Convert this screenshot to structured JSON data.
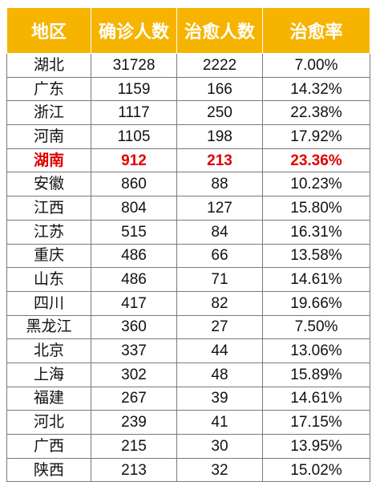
{
  "table": {
    "headers": [
      "地区",
      "确诊人数",
      "治愈人数",
      "治愈率"
    ],
    "highlight_color": "#e00000",
    "header_color": "#f6b400",
    "rows": [
      {
        "region": "湖北",
        "confirmed": "31728",
        "cured": "2222",
        "rate": "7.00%",
        "highlight": false
      },
      {
        "region": "广东",
        "confirmed": "1159",
        "cured": "166",
        "rate": "14.32%",
        "highlight": false
      },
      {
        "region": "浙江",
        "confirmed": "1117",
        "cured": "250",
        "rate": "22.38%",
        "highlight": false
      },
      {
        "region": "河南",
        "confirmed": "1105",
        "cured": "198",
        "rate": "17.92%",
        "highlight": false
      },
      {
        "region": "湖南",
        "confirmed": "912",
        "cured": "213",
        "rate": "23.36%",
        "highlight": true
      },
      {
        "region": "安徽",
        "confirmed": "860",
        "cured": "88",
        "rate": "10.23%",
        "highlight": false
      },
      {
        "region": "江西",
        "confirmed": "804",
        "cured": "127",
        "rate": "15.80%",
        "highlight": false
      },
      {
        "region": "江苏",
        "confirmed": "515",
        "cured": "84",
        "rate": "16.31%",
        "highlight": false
      },
      {
        "region": "重庆",
        "confirmed": "486",
        "cured": "66",
        "rate": "13.58%",
        "highlight": false
      },
      {
        "region": "山东",
        "confirmed": "486",
        "cured": "71",
        "rate": "14.61%",
        "highlight": false
      },
      {
        "region": "四川",
        "confirmed": "417",
        "cured": "82",
        "rate": "19.66%",
        "highlight": false
      },
      {
        "region": "黑龙江",
        "confirmed": "360",
        "cured": "27",
        "rate": "7.50%",
        "highlight": false
      },
      {
        "region": "北京",
        "confirmed": "337",
        "cured": "44",
        "rate": "13.06%",
        "highlight": false
      },
      {
        "region": "上海",
        "confirmed": "302",
        "cured": "48",
        "rate": "15.89%",
        "highlight": false
      },
      {
        "region": "福建",
        "confirmed": "267",
        "cured": "39",
        "rate": "14.61%",
        "highlight": false
      },
      {
        "region": "河北",
        "confirmed": "239",
        "cured": "41",
        "rate": "17.15%",
        "highlight": false
      },
      {
        "region": "广西",
        "confirmed": "215",
        "cured": "30",
        "rate": "13.95%",
        "highlight": false
      },
      {
        "region": "陕西",
        "confirmed": "213",
        "cured": "32",
        "rate": "15.02%",
        "highlight": false
      }
    ]
  }
}
